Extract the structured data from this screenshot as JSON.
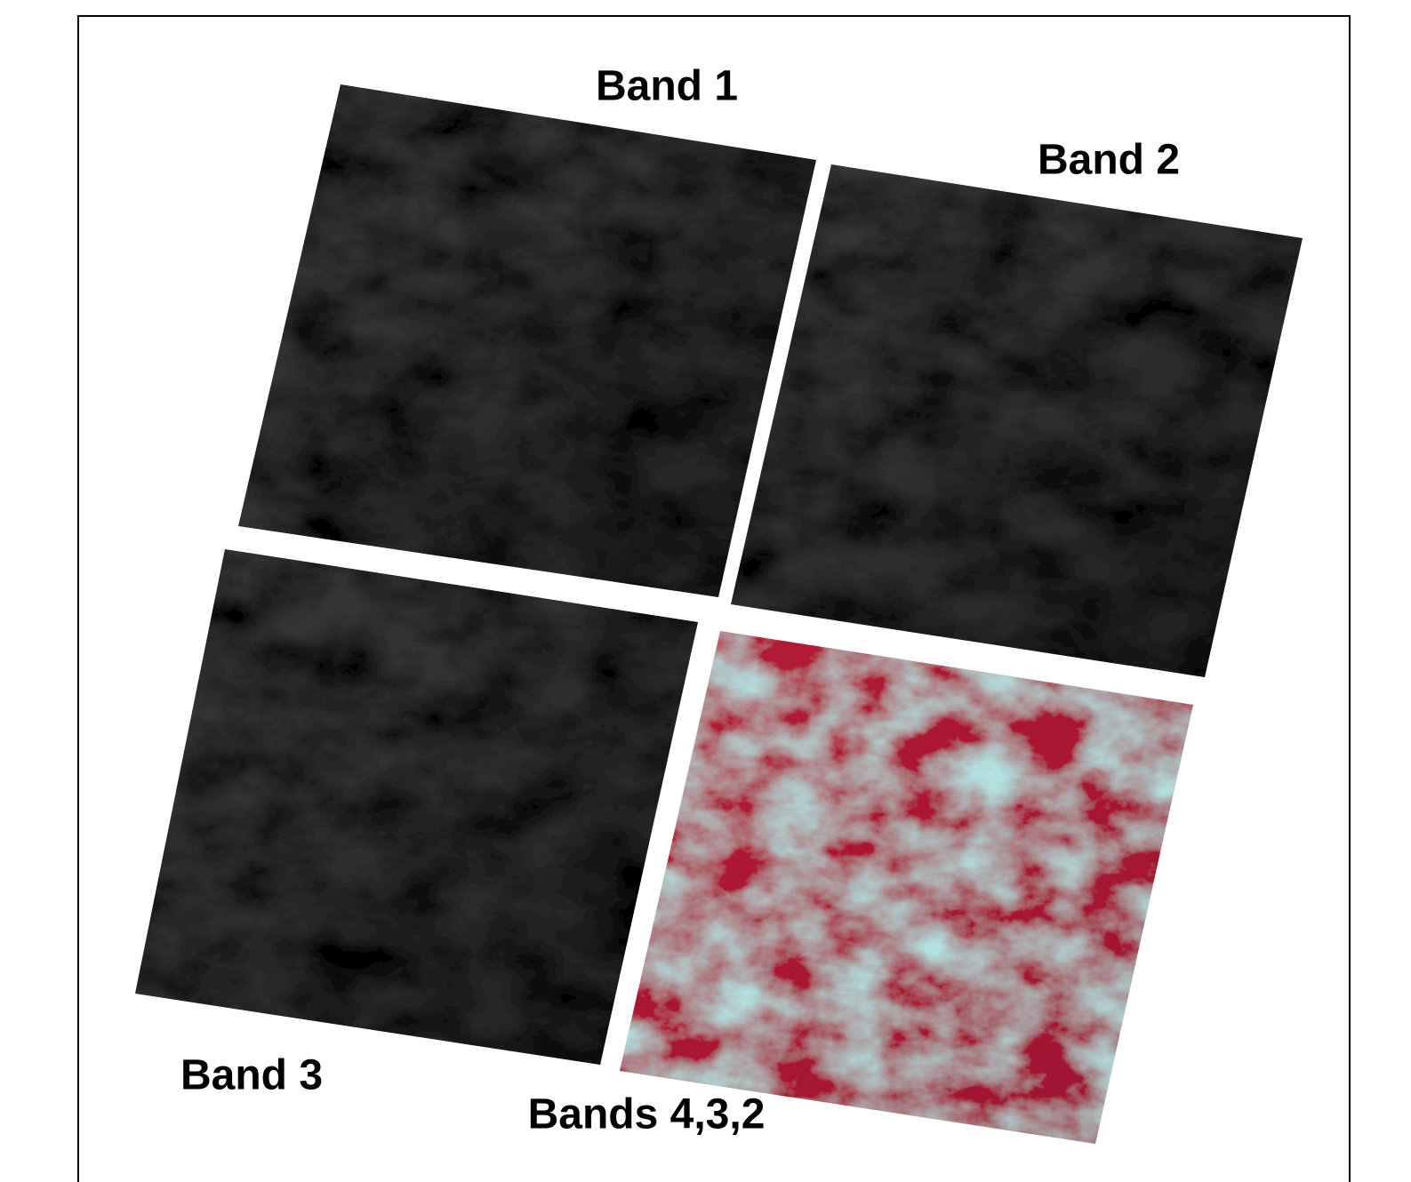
{
  "panels": [
    {
      "label": "Band 1"
    },
    {
      "label": "Band 2"
    },
    {
      "label": "Band 3"
    },
    {
      "label": "Bands 4,3,2"
    }
  ]
}
